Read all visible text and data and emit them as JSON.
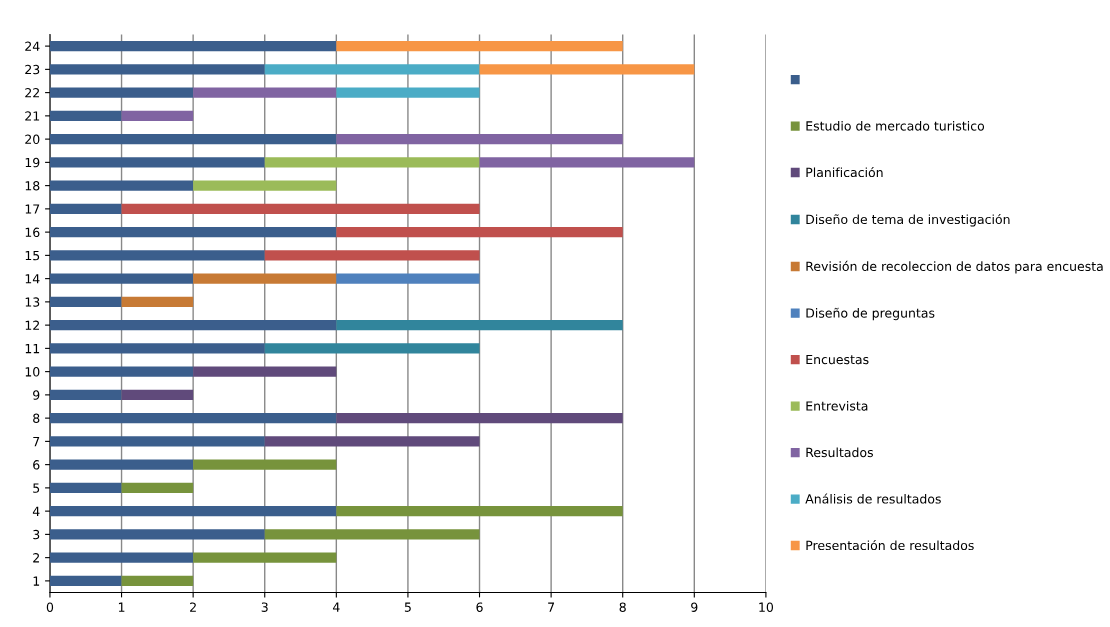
{
  "chart_data": {
    "type": "bar",
    "orientation": "horizontal",
    "stacked": true,
    "categories": [
      "24",
      "23",
      "22",
      "21",
      "20",
      "19",
      "18",
      "17",
      "16",
      "15",
      "14",
      "13",
      "12",
      "11",
      "10",
      "9",
      "8",
      "7",
      "6",
      "5",
      "4",
      "3",
      "2",
      "1"
    ],
    "series": [
      {
        "color": "#3b5e8c",
        "values": [
          4,
          3,
          2,
          1,
          4,
          3,
          2,
          1,
          4,
          3,
          2,
          1,
          4,
          3,
          2,
          1,
          4,
          3,
          2,
          1,
          4,
          3,
          2,
          1
        ]
      },
      {
        "name": "Estudio de mercado turistico",
        "color": "#77933c",
        "values": [
          null,
          null,
          null,
          null,
          null,
          null,
          null,
          null,
          null,
          null,
          null,
          null,
          null,
          null,
          null,
          null,
          null,
          null,
          2,
          1,
          4,
          3,
          2,
          1
        ]
      },
      {
        "name": "Planificación",
        "color": "#604a7b",
        "values": [
          null,
          null,
          null,
          null,
          null,
          null,
          null,
          null,
          null,
          null,
          null,
          null,
          null,
          null,
          2,
          1,
          4,
          3,
          null,
          null,
          null,
          null,
          null,
          null
        ]
      },
      {
        "name": "Diseño de tema de investigación",
        "color": "#31859c",
        "values": [
          null,
          null,
          null,
          null,
          null,
          null,
          null,
          null,
          null,
          null,
          null,
          null,
          4,
          3,
          null,
          null,
          null,
          null,
          null,
          null,
          null,
          null,
          null,
          null
        ]
      },
      {
        "name": "Revisión de recoleccion de datos para encuesta",
        "color": "#c77a35",
        "values": [
          null,
          null,
          null,
          null,
          null,
          null,
          null,
          null,
          null,
          null,
          2,
          1,
          null,
          null,
          null,
          null,
          null,
          null,
          null,
          null,
          null,
          null,
          null,
          null
        ]
      },
      {
        "name": "Diseño de preguntas",
        "color": "#4f81bd",
        "values": [
          null,
          null,
          null,
          null,
          null,
          null,
          null,
          null,
          null,
          null,
          2,
          null,
          null,
          null,
          null,
          null,
          null,
          null,
          null,
          null,
          null,
          null,
          null,
          null
        ]
      },
      {
        "name": "Encuestas",
        "color": "#c0504d",
        "values": [
          null,
          null,
          null,
          null,
          null,
          null,
          null,
          5,
          4,
          3,
          null,
          null,
          null,
          null,
          null,
          null,
          null,
          null,
          null,
          null,
          null,
          null,
          null,
          null
        ]
      },
      {
        "name": "Entrevista",
        "color": "#9bbb59",
        "values": [
          null,
          null,
          null,
          null,
          null,
          3,
          2,
          null,
          null,
          null,
          null,
          null,
          null,
          null,
          null,
          null,
          null,
          null,
          null,
          null,
          null,
          null,
          null,
          null
        ]
      },
      {
        "name": "Resultados",
        "color": "#8064a2",
        "values": [
          null,
          null,
          2,
          1,
          4,
          3,
          null,
          null,
          null,
          null,
          null,
          null,
          null,
          null,
          null,
          null,
          null,
          null,
          null,
          null,
          null,
          null,
          null,
          null
        ]
      },
      {
        "name": "Análisis de resultados",
        "color": "#4bacc6",
        "values": [
          null,
          3,
          2,
          null,
          null,
          null,
          null,
          null,
          null,
          null,
          null,
          null,
          null,
          null,
          null,
          null,
          null,
          null,
          null,
          null,
          null,
          null,
          null,
          null
        ]
      },
      {
        "name": "Presentación de resultados",
        "color": "#f79646",
        "values": [
          4,
          3,
          null,
          null,
          null,
          null,
          null,
          null,
          null,
          null,
          null,
          null,
          null,
          null,
          null,
          null,
          null,
          null,
          null,
          null,
          null,
          null,
          null,
          null
        ]
      }
    ],
    "xlim": [
      0,
      10
    ],
    "xticks": [
      0,
      1,
      2,
      3,
      4,
      5,
      6,
      7,
      8,
      9,
      10
    ],
    "grid": "x",
    "legend": "right"
  }
}
